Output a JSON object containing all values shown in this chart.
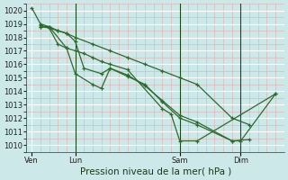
{
  "bg_color": "#cce8e8",
  "grid_major_color": "#ffffff",
  "grid_minor_color": "#ddb8b8",
  "line_color": "#2d6a2d",
  "ylabel": "Pression niveau de la mer( hPa )",
  "ylim": [
    1009.5,
    1020.5
  ],
  "yticks": [
    1010,
    1011,
    1012,
    1013,
    1014,
    1015,
    1016,
    1017,
    1018,
    1019,
    1020
  ],
  "xtick_labels": [
    "Ven",
    "Lun",
    "Sam",
    "Dim"
  ],
  "xtick_positions": [
    0.0,
    2.5,
    8.5,
    12.0
  ],
  "xlim": [
    -0.3,
    14.5
  ],
  "vlines": [
    2.5,
    8.5,
    12.0
  ],
  "series": [
    {
      "x": [
        0.0,
        0.5,
        1.0,
        1.5,
        2.0,
        2.5,
        3.5,
        4.5,
        5.5,
        6.5,
        7.5,
        8.5,
        9.5,
        11.5,
        12.5
      ],
      "y": [
        1020.2,
        1019.0,
        1018.8,
        1018.5,
        1018.3,
        1018.0,
        1017.5,
        1017.0,
        1016.5,
        1016.0,
        1015.5,
        1015.0,
        1014.5,
        1012.0,
        1011.5
      ]
    },
    {
      "x": [
        0.5,
        1.0,
        1.5,
        2.0,
        2.5,
        3.0,
        4.0,
        4.5,
        5.5,
        6.5,
        7.5,
        8.5,
        9.5,
        11.5,
        12.5
      ],
      "y": [
        1018.9,
        1018.7,
        1018.5,
        1018.3,
        1017.7,
        1015.7,
        1015.3,
        1015.7,
        1015.1,
        1014.5,
        1013.2,
        1012.0,
        1011.5,
        1010.3,
        1010.4
      ]
    },
    {
      "x": [
        0.5,
        1.0,
        2.0,
        2.5,
        3.5,
        4.0,
        4.5,
        5.5,
        6.5,
        7.5,
        8.5,
        9.5,
        11.5,
        12.0,
        14.0
      ],
      "y": [
        1018.8,
        1018.8,
        1017.2,
        1015.3,
        1014.5,
        1014.2,
        1015.7,
        1015.2,
        1014.4,
        1013.3,
        1012.2,
        1011.7,
        1010.3,
        1010.3,
        1013.8
      ]
    },
    {
      "x": [
        0.5,
        1.0,
        1.5,
        2.0,
        2.5,
        3.0,
        3.5,
        4.0,
        4.5,
        5.5,
        7.5,
        8.0,
        8.5,
        9.5,
        14.0
      ],
      "y": [
        1018.8,
        1018.7,
        1017.5,
        1017.2,
        1017.0,
        1016.8,
        1016.5,
        1016.2,
        1016.0,
        1015.6,
        1012.7,
        1012.3,
        1010.3,
        1010.3,
        1013.8
      ]
    }
  ],
  "tick_fontsize": 6.0,
  "xlabel_fontsize": 7.5
}
